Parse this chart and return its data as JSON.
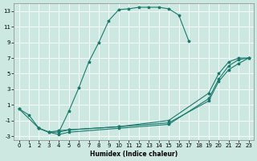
{
  "bg_color": "#cce8e0",
  "grid_color": "#b0d4cc",
  "line_color": "#1a7a6e",
  "xlabel": "Humidex (Indice chaleur)",
  "xlim": [
    -0.5,
    23.5
  ],
  "ylim": [
    -3.5,
    14.0
  ],
  "xticks": [
    0,
    1,
    2,
    3,
    4,
    5,
    6,
    7,
    8,
    9,
    10,
    11,
    12,
    13,
    14,
    15,
    16,
    17,
    18,
    19,
    20,
    21,
    22,
    23
  ],
  "yticks": [
    -3,
    -1,
    1,
    3,
    5,
    7,
    9,
    11,
    13
  ],
  "series1_x": [
    0,
    1,
    2,
    3,
    4,
    5,
    6,
    7,
    8,
    9,
    10,
    11,
    12,
    13,
    14,
    15,
    16,
    17
  ],
  "series1_y": [
    0.5,
    -0.3,
    -2.0,
    -2.5,
    -2.5,
    0.2,
    3.2,
    6.5,
    9.0,
    11.8,
    13.2,
    13.3,
    13.5,
    13.5,
    13.5,
    13.3,
    12.5,
    9.2
  ],
  "series2_x": [
    0,
    2,
    3,
    4,
    5,
    10,
    15,
    19,
    20,
    21,
    22,
    23
  ],
  "series2_y": [
    0.5,
    -2.0,
    -2.5,
    -2.3,
    -2.2,
    -1.8,
    -1.3,
    1.5,
    4.0,
    5.5,
    6.3,
    7.0
  ],
  "series3_x": [
    2,
    3,
    4,
    5,
    10,
    15,
    19,
    20,
    21,
    22,
    23
  ],
  "series3_y": [
    -2.0,
    -2.5,
    -2.8,
    -2.5,
    -2.0,
    -1.5,
    1.8,
    4.3,
    6.0,
    6.8,
    7.0
  ],
  "series4_x": [
    4,
    5,
    10,
    15,
    19,
    20,
    21,
    22,
    23
  ],
  "series4_y": [
    -2.5,
    -2.2,
    -1.8,
    -1.0,
    2.5,
    5.0,
    6.5,
    7.0,
    7.0
  ]
}
